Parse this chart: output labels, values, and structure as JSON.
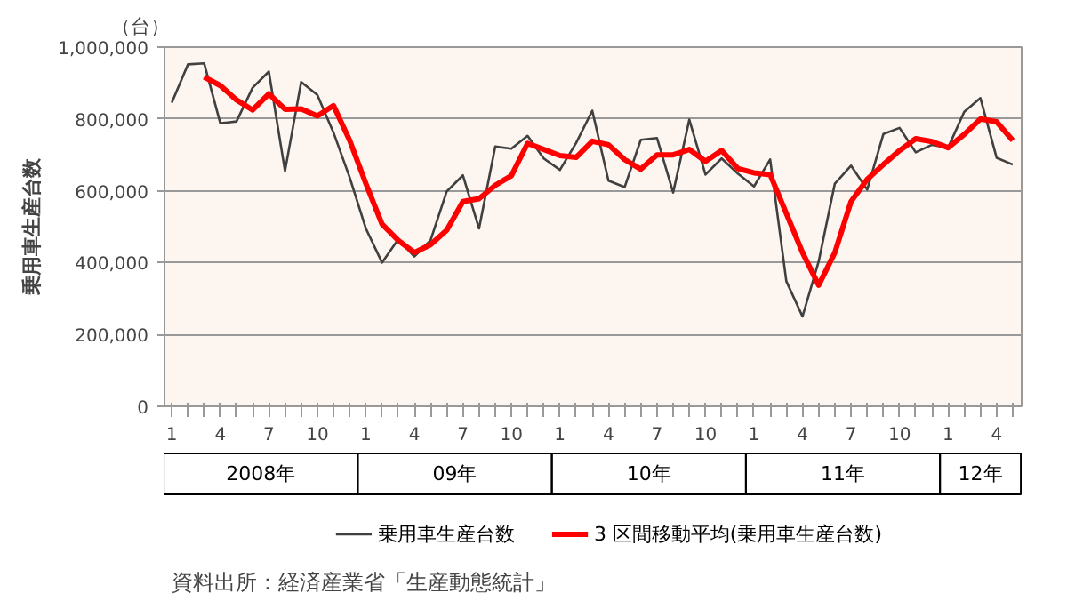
{
  "chart_data": {
    "type": "line",
    "ylabel": "乗用車生産台数",
    "categories": [
      "1",
      null,
      null,
      "4",
      null,
      null,
      "7",
      null,
      null,
      "10",
      null,
      null,
      "1",
      null,
      null,
      "4",
      null,
      null,
      "7",
      null,
      null,
      "10",
      null,
      null,
      "1",
      null,
      null,
      "4",
      null,
      null,
      "7",
      null,
      null,
      "10",
      null,
      null,
      "1",
      null,
      null,
      "4",
      null,
      null,
      "7",
      null,
      null,
      "10",
      null,
      null,
      "1",
      null,
      null,
      "4",
      null
    ],
    "series": [
      {
        "name": "乗用車生産台数",
        "color": "#404040",
        "values": [
          845000,
          952000,
          955000,
          788000,
          793000,
          887000,
          932000,
          655000,
          903000,
          867000,
          762000,
          637000,
          495000,
          400000,
          465000,
          417000,
          462000,
          598000,
          643000,
          495000,
          723000,
          717000,
          753000,
          690000,
          658000,
          733000,
          823000,
          628000,
          610000,
          742000,
          747000,
          595000,
          798000,
          645000,
          690000,
          648000,
          612000,
          687000,
          348000,
          250000,
          403000,
          620000,
          670000,
          603000,
          758000,
          775000,
          707000,
          728000,
          720000,
          820000,
          858000,
          692000,
          673000
        ]
      },
      {
        "name": "3 区間移動平均(乗用車生産台数)",
        "color": "#ff0000",
        "values": [
          null,
          null,
          917000,
          893000,
          853000,
          825000,
          870000,
          827000,
          828000,
          808000,
          837000,
          740000,
          620000,
          507000,
          462000,
          428000,
          450000,
          490000,
          570000,
          578000,
          615000,
          642000,
          732000,
          715000,
          698000,
          693000,
          738000,
          728000,
          687000,
          660000,
          700000,
          700000,
          715000,
          682000,
          712000,
          662000,
          650000,
          645000,
          537000,
          428000,
          337000,
          428000,
          570000,
          632000,
          673000,
          712000,
          745000,
          737000,
          720000,
          757000,
          800000,
          792000,
          740000
        ]
      }
    ],
    "ylim": [
      0,
      1000000
    ],
    "yticks": [
      0,
      {
        "value": 200000,
        "label": "200,000"
      },
      {
        "value": 400000,
        "label": "400,000"
      },
      {
        "value": 600000,
        "label": "600,000"
      },
      {
        "value": 800000,
        "label": "800,000"
      },
      {
        "value": 1000000,
        "label": "1,000,000"
      }
    ],
    "grid": "y",
    "legend": "bottom",
    "marker": "none",
    "line_style": "solid",
    "annotations": [
      "2008年",
      "09年",
      "10年",
      "11年",
      "12年",
      "（台）",
      "資料出所：経済産業省「生産動態統計」"
    ]
  }
}
